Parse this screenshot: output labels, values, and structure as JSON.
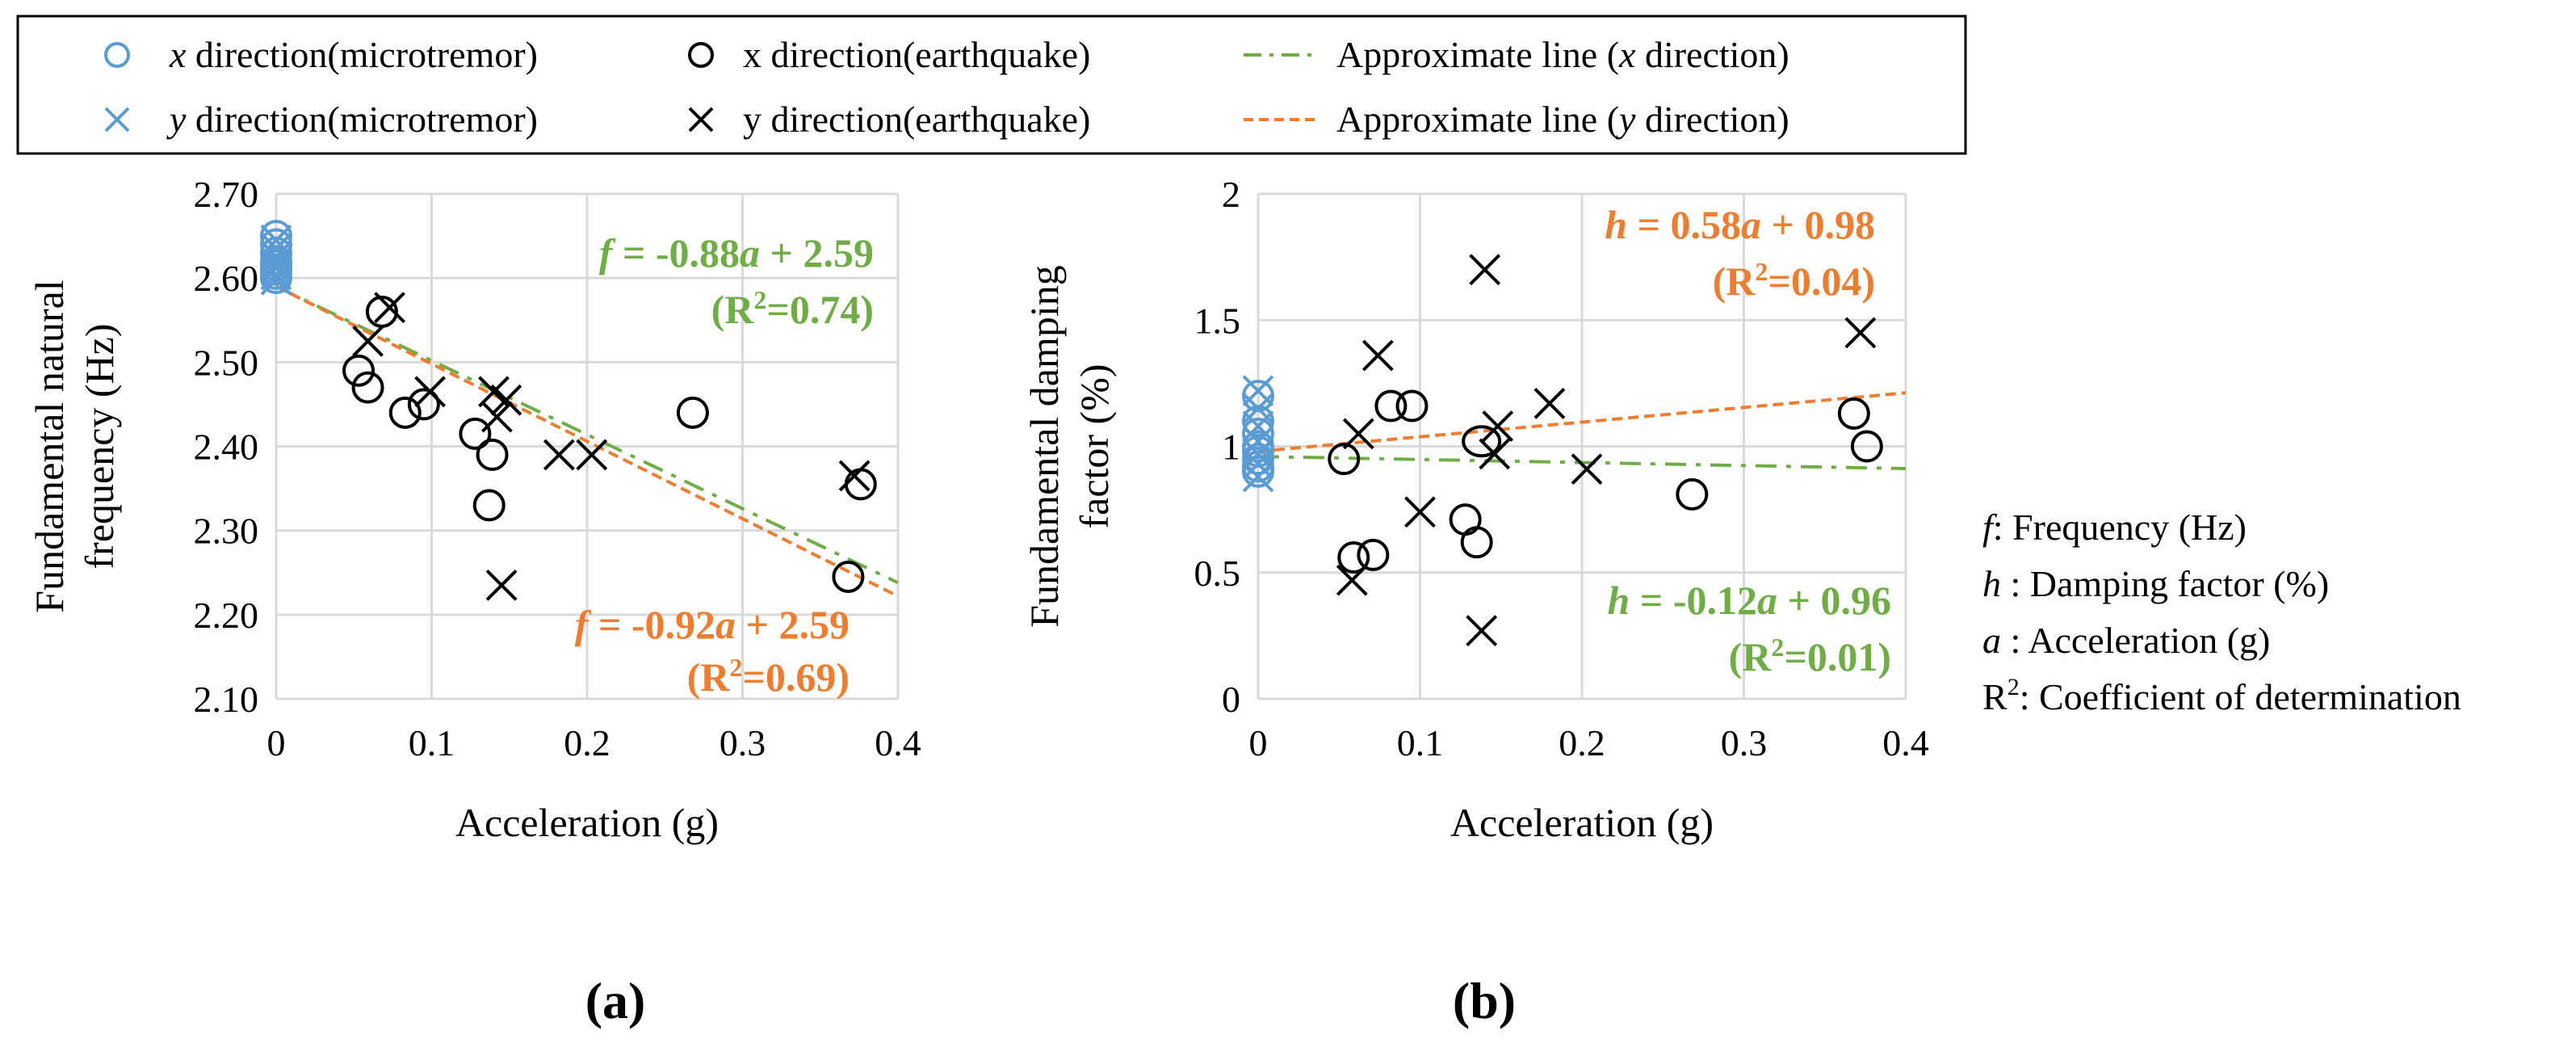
{
  "legend": {
    "items": [
      {
        "key": "x-micro",
        "pre": "",
        "ital": "x",
        "post": " direction(microtremor)",
        "marker": "circle",
        "color": "#5b9bd5"
      },
      {
        "key": "x-eq",
        "pre": "",
        "ital": "",
        "post": "x direction(earthquake)",
        "marker": "circle",
        "color": "#000000"
      },
      {
        "key": "x-fit",
        "pre": "Approximate line (",
        "ital": "x",
        "post": " direction)",
        "marker": "dashdot",
        "color": "#70ad47"
      },
      {
        "key": "y-micro",
        "pre": "",
        "ital": "y",
        "post": " direction(microtremor)",
        "marker": "cross",
        "color": "#5b9bd5"
      },
      {
        "key": "y-eq",
        "pre": "",
        "ital": "",
        "post": "y direction(earthquake)",
        "marker": "cross",
        "color": "#000000"
      },
      {
        "key": "y-fit",
        "pre": "Approximate line (",
        "ital": "y",
        "post": " direction)",
        "marker": "dashed",
        "color": "#ed7d31"
      }
    ]
  },
  "colors": {
    "micro": "#5b9bd5",
    "earthquake": "#000000",
    "x_fit": "#70ad47",
    "y_fit": "#ed7d31",
    "grid": "#d9d9d9"
  },
  "notes": {
    "lines": [
      {
        "sym": "f",
        "text": ": Frequency (Hz)"
      },
      {
        "sym": "h",
        "text": " : Damping factor (%)"
      },
      {
        "sym": "a",
        "text": " : Acceleration (g)"
      },
      {
        "sym": "R",
        "sup": "2",
        "text": ": Coefficient of determination"
      }
    ]
  },
  "chart_data": [
    {
      "id": "a",
      "type": "scatter",
      "caption": "(a)",
      "xlabel": "Acceleration (g)",
      "ylabel": [
        "Fundamental natural",
        "frequency (Hz)"
      ],
      "xlim": [
        0,
        0.4
      ],
      "ylim": [
        2.1,
        2.7
      ],
      "xticks": [
        0,
        0.1,
        0.2,
        0.3,
        0.4
      ],
      "xtick_labels": [
        "0",
        "0.1",
        "0.2",
        "0.3",
        "0.4"
      ],
      "yticks": [
        2.1,
        2.2,
        2.3,
        2.4,
        2.5,
        2.6,
        2.7
      ],
      "ytick_labels": [
        "2.10",
        "2.20",
        "2.30",
        "2.40",
        "2.50",
        "2.60",
        "2.70"
      ],
      "grid": true,
      "series": [
        {
          "name": "x direction(microtremor)",
          "marker": "circle",
          "color": "#5b9bd5",
          "x": [
            0,
            0,
            0,
            0,
            0,
            0,
            0,
            0
          ],
          "y": [
            2.65,
            2.64,
            2.63,
            2.62,
            2.615,
            2.61,
            2.605,
            2.6
          ]
        },
        {
          "name": "y direction(microtremor)",
          "marker": "cross",
          "color": "#5b9bd5",
          "x": [
            0,
            0,
            0,
            0,
            0,
            0,
            0
          ],
          "y": [
            2.645,
            2.635,
            2.625,
            2.618,
            2.612,
            2.604,
            2.598
          ]
        },
        {
          "name": "x direction(earthquake)",
          "marker": "circle",
          "color": "#000000",
          "x": [
            0.053,
            0.059,
            0.068,
            0.083,
            0.095,
            0.128,
            0.137,
            0.139,
            0.268,
            0.368,
            0.376
          ],
          "y": [
            2.49,
            2.47,
            2.56,
            2.44,
            2.45,
            2.415,
            2.33,
            2.39,
            2.44,
            2.245,
            2.355
          ]
        },
        {
          "name": "y direction(earthquake)",
          "marker": "cross",
          "color": "#000000",
          "x": [
            0.059,
            0.073,
            0.099,
            0.14,
            0.142,
            0.148,
            0.145,
            0.182,
            0.203,
            0.372
          ],
          "y": [
            2.525,
            2.565,
            2.465,
            2.465,
            2.435,
            2.455,
            2.235,
            2.39,
            2.39,
            2.365
          ]
        }
      ],
      "fits": [
        {
          "name": "Approximate line (x direction)",
          "style": "dashdot",
          "color": "#70ad47",
          "slope": -0.88,
          "intercept": 2.59
        },
        {
          "name": "Approximate line (y direction)",
          "style": "dashed",
          "color": "#ed7d31",
          "slope": -0.92,
          "intercept": 2.59
        }
      ],
      "annotations": [
        {
          "color": "#70ad47",
          "sym": "f",
          "eq": " = -0.88",
          "var": "a",
          "rest": " + 2.59",
          "r2": "0.74",
          "pos": "upper"
        },
        {
          "color": "#ed7d31",
          "sym": "f",
          "eq": " = -0.92",
          "var": "a",
          "rest": " + 2.59",
          "r2": "0.69",
          "pos": "lower"
        }
      ]
    },
    {
      "id": "b",
      "type": "scatter",
      "caption": "(b)",
      "xlabel": "Acceleration (g)",
      "ylabel": [
        "Fundamental damping",
        "factor (%)"
      ],
      "xlim": [
        0,
        0.4
      ],
      "ylim": [
        0,
        2
      ],
      "xticks": [
        0,
        0.1,
        0.2,
        0.3,
        0.4
      ],
      "xtick_labels": [
        "0",
        "0.1",
        "0.2",
        "0.3",
        "0.4"
      ],
      "yticks": [
        0,
        0.5,
        1,
        1.5,
        2
      ],
      "ytick_labels": [
        "0",
        "0.5",
        "1",
        "1.5",
        "2"
      ],
      "grid": true,
      "series": [
        {
          "name": "x direction(microtremor)",
          "marker": "circle",
          "color": "#5b9bd5",
          "x": [
            0,
            0,
            0,
            0,
            0,
            0,
            0,
            0
          ],
          "y": [
            1.2,
            1.1,
            1.05,
            1.0,
            0.98,
            0.95,
            0.92,
            0.9
          ]
        },
        {
          "name": "y direction(microtremor)",
          "marker": "cross",
          "color": "#5b9bd5",
          "x": [
            0,
            0,
            0,
            0,
            0,
            0,
            0
          ],
          "y": [
            1.22,
            1.15,
            1.08,
            1.02,
            0.97,
            0.93,
            0.88
          ]
        },
        {
          "name": "x direction(earthquake)",
          "marker": "circle",
          "color": "#000000",
          "x": [
            0.053,
            0.059,
            0.071,
            0.082,
            0.095,
            0.128,
            0.135,
            0.138,
            0.268,
            0.368,
            0.376
          ],
          "y": [
            0.95,
            0.56,
            0.57,
            1.16,
            1.16,
            0.71,
            0.62,
            1.02,
            0.81,
            1.13,
            1.0
          ],
          "rx": [
            1,
            1,
            1,
            1,
            1,
            1,
            1,
            1.25,
            1,
            1,
            1
          ]
        },
        {
          "name": "y direction(earthquake)",
          "marker": "cross",
          "color": "#000000",
          "x": [
            0.058,
            0.062,
            0.074,
            0.1,
            0.14,
            0.138,
            0.146,
            0.148,
            0.18,
            0.203,
            0.372
          ],
          "y": [
            0.47,
            1.05,
            1.36,
            0.74,
            1.7,
            0.27,
            0.97,
            1.08,
            1.17,
            0.91,
            1.45
          ]
        }
      ],
      "fits": [
        {
          "name": "Approximate line (x direction)",
          "style": "dashdot",
          "color": "#70ad47",
          "slope": -0.12,
          "intercept": 0.96
        },
        {
          "name": "Approximate line (y direction)",
          "style": "dashed",
          "color": "#ed7d31",
          "slope": 0.58,
          "intercept": 0.98
        }
      ],
      "annotations": [
        {
          "color": "#ed7d31",
          "sym": "h",
          "eq": " = 0.58",
          "var": "a",
          "rest": " + 0.98",
          "r2": "0.04",
          "pos": "upper"
        },
        {
          "color": "#70ad47",
          "sym": "h",
          "eq": " = -0.12",
          "var": "a",
          "rest": " + 0.96",
          "r2": "0.01",
          "pos": "lower"
        }
      ]
    }
  ]
}
